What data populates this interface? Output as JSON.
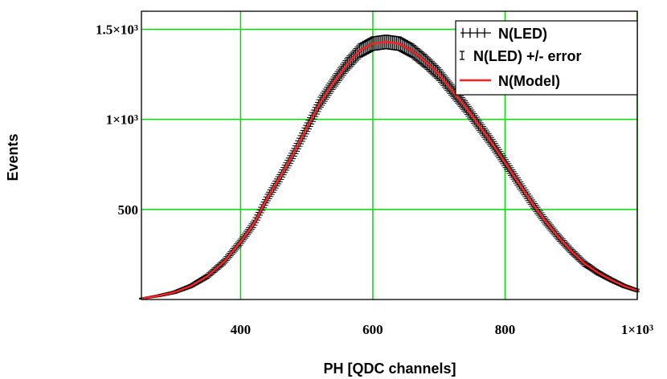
{
  "chart_data": {
    "type": "line",
    "title": "",
    "xlabel": "PH [QDC channels]",
    "ylabel": "Events",
    "xlim": [
      250,
      1000
    ],
    "ylim": [
      0,
      1600
    ],
    "xticks": [
      400,
      600,
      800,
      1000
    ],
    "xtick_labels": [
      "400",
      "600",
      "800",
      "1×10³"
    ],
    "yticks": [
      500,
      1000,
      1500
    ],
    "ytick_labels": [
      "500",
      "1×10³",
      "1.5×10³"
    ],
    "grid": true,
    "grid_color": "#00dd00",
    "legend_position": "top-right",
    "series": [
      {
        "name": "N(LED)",
        "style": "black crosses",
        "color": "#000000",
        "x": [
          250,
          275,
          300,
          325,
          350,
          375,
          400,
          420,
          440,
          460,
          480,
          500,
          520,
          540,
          560,
          580,
          600,
          620,
          640,
          660,
          680,
          700,
          720,
          740,
          760,
          780,
          800,
          820,
          840,
          860,
          880,
          900,
          920,
          940,
          960,
          980,
          1000
        ],
        "y": [
          5,
          20,
          40,
          75,
          130,
          210,
          320,
          420,
          560,
          680,
          810,
          950,
          1090,
          1200,
          1300,
          1380,
          1420,
          1430,
          1420,
          1380,
          1320,
          1250,
          1160,
          1070,
          970,
          870,
          760,
          650,
          540,
          440,
          350,
          270,
          200,
          150,
          110,
          75,
          50
        ]
      },
      {
        "name": "N(LED) +/- error",
        "style": "black error bars",
        "color": "#000000"
      },
      {
        "name": "N(Model)",
        "style": "red line",
        "color": "#ff2020",
        "x": [
          250,
          275,
          300,
          325,
          350,
          375,
          400,
          420,
          440,
          460,
          480,
          500,
          520,
          540,
          560,
          580,
          600,
          620,
          640,
          660,
          680,
          700,
          720,
          740,
          760,
          780,
          800,
          820,
          840,
          860,
          880,
          900,
          920,
          940,
          960,
          980,
          1000
        ],
        "y": [
          5,
          20,
          40,
          75,
          130,
          210,
          320,
          420,
          560,
          680,
          810,
          950,
          1090,
          1200,
          1300,
          1380,
          1420,
          1430,
          1420,
          1380,
          1320,
          1250,
          1160,
          1070,
          970,
          870,
          760,
          650,
          540,
          440,
          350,
          270,
          200,
          150,
          110,
          75,
          50
        ]
      }
    ]
  }
}
